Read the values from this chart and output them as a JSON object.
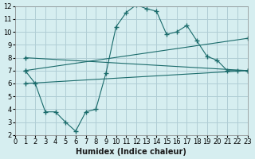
{
  "xlabel": "Humidex (Indice chaleur)",
  "bg_color": "#d6eef0",
  "grid_color": "#b0cdd5",
  "line_color": "#1a6b6b",
  "xlim": [
    0,
    23
  ],
  "ylim": [
    2,
    12
  ],
  "xticks": [
    0,
    1,
    2,
    3,
    4,
    5,
    6,
    7,
    8,
    9,
    10,
    11,
    12,
    13,
    14,
    15,
    16,
    17,
    18,
    19,
    20,
    21,
    22,
    23
  ],
  "yticks": [
    2,
    3,
    4,
    5,
    6,
    7,
    8,
    9,
    10,
    11,
    12
  ],
  "line1_x": [
    1,
    2,
    3,
    4,
    5,
    6,
    7,
    8,
    9,
    10,
    11,
    12,
    13,
    14,
    15,
    16,
    17,
    18,
    19,
    20,
    21,
    22,
    23
  ],
  "line1_y": [
    7.0,
    6.0,
    3.8,
    3.8,
    3.0,
    2.3,
    3.8,
    4.0,
    6.8,
    10.4,
    11.5,
    12.1,
    11.8,
    11.6,
    9.8,
    10.0,
    10.5,
    9.3,
    8.1,
    7.8,
    7.0,
    7.0,
    7.0
  ],
  "line2_x": [
    1,
    23
  ],
  "line2_y": [
    8.0,
    7.0
  ],
  "line3_x": [
    1,
    23
  ],
  "line3_y": [
    7.0,
    9.5
  ],
  "line4_x": [
    1,
    23
  ],
  "line4_y": [
    6.0,
    7.0
  ]
}
